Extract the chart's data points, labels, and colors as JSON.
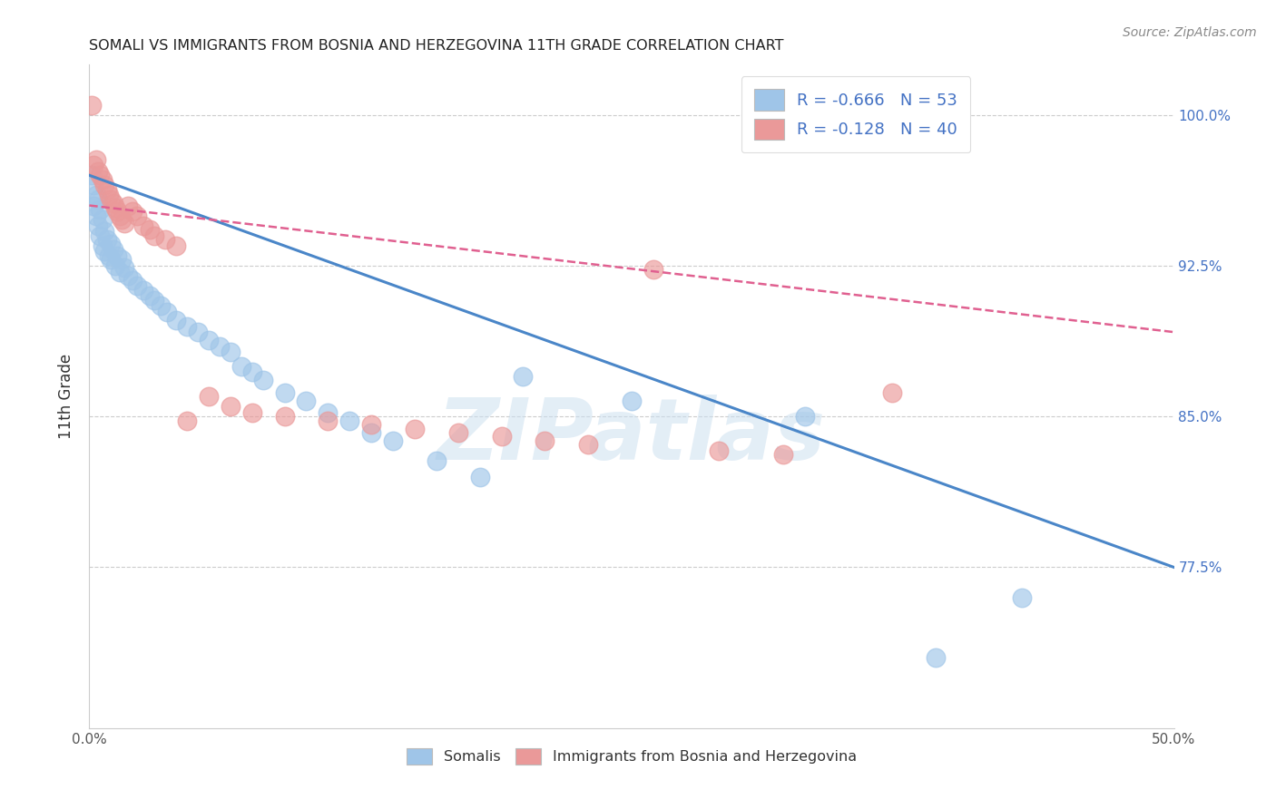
{
  "title": "SOMALI VS IMMIGRANTS FROM BOSNIA AND HERZEGOVINA 11TH GRADE CORRELATION CHART",
  "source": "Source: ZipAtlas.com",
  "ylabel": "11th Grade",
  "x_min": 0.0,
  "x_max": 0.5,
  "y_min": 0.695,
  "y_max": 1.025,
  "x_ticks": [
    0.0,
    0.1,
    0.2,
    0.3,
    0.4,
    0.5
  ],
  "x_tick_labels": [
    "0.0%",
    "",
    "",
    "",
    "",
    "50.0%"
  ],
  "y_ticks": [
    0.775,
    0.85,
    0.925,
    1.0
  ],
  "y_tick_labels": [
    "77.5%",
    "85.0%",
    "92.5%",
    "100.0%"
  ],
  "blue_R": -0.666,
  "blue_N": 53,
  "pink_R": -0.128,
  "pink_N": 40,
  "blue_color": "#9fc5e8",
  "pink_color": "#ea9999",
  "blue_line_color": "#4a86c8",
  "pink_line_color": "#e06090",
  "watermark": "ZIPatlas",
  "blue_scatter_x": [
    0.001,
    0.002,
    0.002,
    0.003,
    0.003,
    0.004,
    0.004,
    0.005,
    0.005,
    0.006,
    0.006,
    0.007,
    0.007,
    0.008,
    0.009,
    0.01,
    0.01,
    0.011,
    0.012,
    0.013,
    0.014,
    0.015,
    0.016,
    0.018,
    0.02,
    0.022,
    0.025,
    0.028,
    0.03,
    0.033,
    0.036,
    0.04,
    0.045,
    0.05,
    0.055,
    0.06,
    0.065,
    0.07,
    0.075,
    0.08,
    0.09,
    0.1,
    0.11,
    0.12,
    0.13,
    0.14,
    0.16,
    0.18,
    0.2,
    0.25,
    0.33,
    0.39,
    0.43
  ],
  "blue_scatter_y": [
    0.97,
    0.965,
    0.955,
    0.96,
    0.95,
    0.958,
    0.945,
    0.953,
    0.94,
    0.948,
    0.935,
    0.942,
    0.932,
    0.938,
    0.93,
    0.936,
    0.928,
    0.933,
    0.925,
    0.93,
    0.922,
    0.928,
    0.924,
    0.92,
    0.918,
    0.915,
    0.913,
    0.91,
    0.908,
    0.905,
    0.902,
    0.898,
    0.895,
    0.892,
    0.888,
    0.885,
    0.882,
    0.875,
    0.872,
    0.868,
    0.862,
    0.858,
    0.852,
    0.848,
    0.842,
    0.838,
    0.828,
    0.82,
    0.87,
    0.858,
    0.85,
    0.73,
    0.76
  ],
  "pink_scatter_x": [
    0.001,
    0.002,
    0.003,
    0.004,
    0.005,
    0.006,
    0.007,
    0.008,
    0.009,
    0.01,
    0.011,
    0.012,
    0.013,
    0.014,
    0.015,
    0.016,
    0.018,
    0.02,
    0.022,
    0.025,
    0.028,
    0.03,
    0.035,
    0.04,
    0.045,
    0.055,
    0.065,
    0.075,
    0.09,
    0.11,
    0.13,
    0.15,
    0.17,
    0.19,
    0.21,
    0.23,
    0.26,
    0.29,
    0.32,
    0.37
  ],
  "pink_scatter_y": [
    1.005,
    0.975,
    0.978,
    0.972,
    0.97,
    0.968,
    0.965,
    0.963,
    0.96,
    0.958,
    0.956,
    0.954,
    0.952,
    0.95,
    0.948,
    0.946,
    0.955,
    0.952,
    0.95,
    0.945,
    0.943,
    0.94,
    0.938,
    0.935,
    0.848,
    0.86,
    0.855,
    0.852,
    0.85,
    0.848,
    0.846,
    0.844,
    0.842,
    0.84,
    0.838,
    0.836,
    0.923,
    0.833,
    0.831,
    0.862
  ]
}
